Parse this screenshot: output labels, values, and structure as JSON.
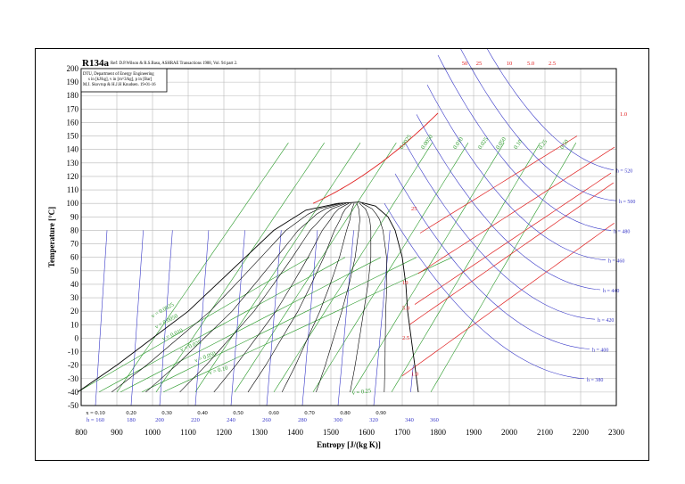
{
  "chart_data": {
    "type": "line",
    "title": "R134a",
    "header_lines": [
      "Ref: D.P.Wilson & R.S.Basu, ASHRAE Transactions 1988, Vol. 94 part 2.",
      "DTU, Department of Energy Engineering",
      "s in [kJ/kg], v in [m^3/kg], p in [Bar]",
      "M.J. Skovrup & H.J.H Knudsen. 19-01-16"
    ],
    "xlabel": "Entropy [J/(kg K)]",
    "ylabel": "Temperature [°C]",
    "xlim": [
      800,
      2300
    ],
    "ylim": [
      -50,
      200
    ],
    "x_ticks": [
      "800",
      "900",
      "1000",
      "1100",
      "1200",
      "1300",
      "1400",
      "1500",
      "1600",
      "1700",
      "1800",
      "1900",
      "2000",
      "2100",
      "2200",
      "2300"
    ],
    "y_ticks": [
      "200",
      "190",
      "180",
      "170",
      "160",
      "150",
      "140",
      "130",
      "120",
      "110",
      "100",
      "90",
      "80",
      "70",
      "60",
      "50",
      "40",
      "30",
      "20",
      "10",
      "0",
      "-10",
      "-20",
      "-30",
      "-40",
      "-50"
    ],
    "grid": true,
    "quality_labels": [
      "x = 0.10",
      "0.20",
      "0.30",
      "0.40",
      "0.50",
      "0.60",
      "0.70",
      "0.80",
      "0.90"
    ],
    "quality_values": [
      0.1,
      0.2,
      0.3,
      0.4,
      0.5,
      0.6,
      0.7,
      0.8,
      0.9
    ],
    "bottom_enthalpy_labels": [
      "h = 160",
      "180",
      "200",
      "220",
      "240",
      "260",
      "280",
      "300",
      "320",
      "340",
      "360"
    ],
    "bottom_enthalpy_x": [
      840,
      940,
      1020,
      1120,
      1220,
      1320,
      1420,
      1520,
      1620,
      1720,
      1790
    ],
    "enthalpy_lines": [
      {
        "label": "h = 380",
        "value": 380
      },
      {
        "label": "h = 400",
        "value": 400
      },
      {
        "label": "h = 420",
        "value": 420
      },
      {
        "label": "h = 440",
        "value": 440
      },
      {
        "label": "h = 460",
        "value": 460
      },
      {
        "label": "h = 480",
        "value": 480
      },
      {
        "label": "h = 500",
        "value": 500
      },
      {
        "label": "h = 520",
        "value": 520
      }
    ],
    "volume_lines": [
      {
        "label": "v = 0.0025"
      },
      {
        "label": "v = 0.0050"
      },
      {
        "label": "v = 0.010"
      },
      {
        "label": "v = 0.025"
      },
      {
        "label": "v = 0.050"
      },
      {
        "label": "v = 0.10"
      },
      {
        "label": "v = 0.25"
      }
    ],
    "volume_top_labels": [
      "0.0025",
      "0.0050",
      "0.010",
      "0.025",
      "0.050",
      "0.10",
      "0.25",
      "0.50"
    ],
    "pressure_labels": [
      "1.0",
      "2.5",
      "5.0",
      "10",
      "25"
    ],
    "top_pressure_labels": [
      "50",
      "25",
      "10",
      "5.0",
      "2.5"
    ],
    "right_pressure_label": "1.0",
    "saturation_dome": {
      "liquid": [
        [
          790,
          -40
        ],
        [
          900,
          -20
        ],
        [
          1000,
          0
        ],
        [
          1100,
          20
        ],
        [
          1180,
          40
        ],
        [
          1260,
          60
        ],
        [
          1340,
          80
        ],
        [
          1430,
          95
        ],
        [
          1520,
          100
        ],
        [
          1580,
          101
        ]
      ],
      "vapor": [
        [
          1580,
          101
        ],
        [
          1625,
          98
        ],
        [
          1660,
          90
        ],
        [
          1680,
          80
        ],
        [
          1700,
          60
        ],
        [
          1710,
          40
        ],
        [
          1715,
          20
        ],
        [
          1725,
          0
        ],
        [
          1735,
          -20
        ],
        [
          1745,
          -40
        ]
      ]
    },
    "colors": {
      "isobar": "#e02020",
      "isenthalp": "#3838c8",
      "isochor": "#2a9a2a",
      "quality": "#000000",
      "grid": "#b8b8b8"
    }
  }
}
